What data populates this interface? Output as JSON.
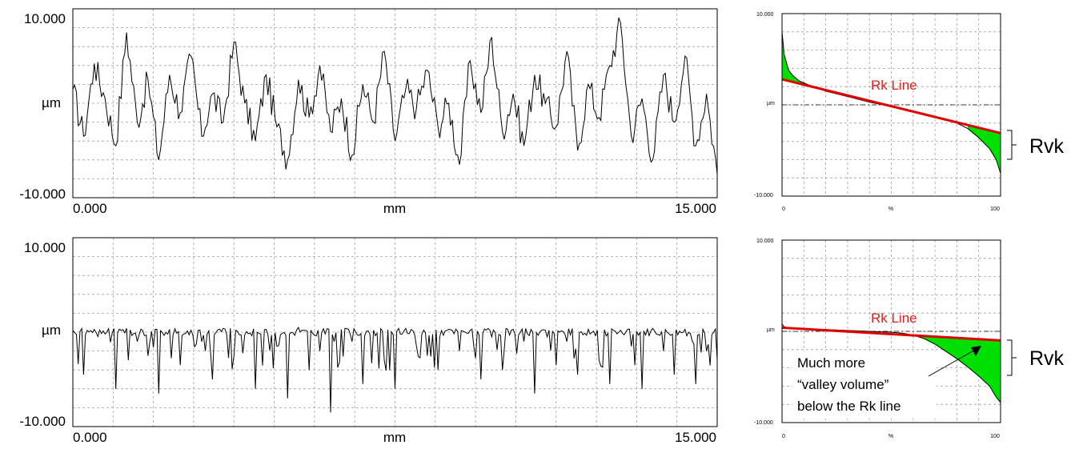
{
  "chart_data": [
    {
      "id": "profile_top",
      "type": "line",
      "description_label": "",
      "ylabel": "µm",
      "xlabel": "mm",
      "y_tick_labels": [
        "10.000",
        "-10.000"
      ],
      "x_tick_labels": [
        "0.000",
        "15.000"
      ],
      "xlim": [
        0,
        15
      ],
      "ylim": [
        -10,
        10
      ],
      "grid": true,
      "series": [
        {
          "x": [
            0,
            0.25,
            0.5,
            0.75,
            1,
            1.25,
            1.5,
            1.75,
            2,
            2.25,
            2.5,
            2.75,
            3,
            3.25,
            3.5,
            3.75,
            4,
            4.25,
            4.5,
            4.75,
            5,
            5.25,
            5.5,
            5.75,
            6,
            6.25,
            6.5,
            6.75,
            7,
            7.25,
            7.5,
            7.75,
            8,
            8.25,
            8.5,
            8.75,
            9,
            9.25,
            9.5,
            9.75,
            10,
            10.25,
            10.5,
            10.75,
            11,
            11.25,
            11.5,
            11.75,
            12,
            12.25,
            12.5,
            12.75,
            13,
            13.25,
            13.5,
            13.75,
            14,
            14.25,
            14.5,
            14.75,
            15
          ],
          "y": [
            1.5,
            -3.5,
            4.2,
            0.5,
            -4.5,
            7.5,
            -2.0,
            2.5,
            -6.0,
            3.0,
            -1.0,
            5.0,
            -3.5,
            1.0,
            -2.0,
            6.5,
            0.0,
            -4.0,
            3.0,
            -2.5,
            -6.0,
            2.5,
            -1.5,
            4.0,
            -3.0,
            0.5,
            -5.5,
            2.0,
            -2.0,
            5.5,
            -4.0,
            1.5,
            -0.5,
            3.5,
            -2.5,
            0.0,
            -6.5,
            4.5,
            -1.0,
            7.0,
            -3.0,
            1.0,
            -4.5,
            3.0,
            0.0,
            -2.5,
            5.5,
            -5.0,
            2.0,
            -1.5,
            4.0,
            8.5,
            -3.5,
            0.5,
            -6.0,
            3.0,
            -2.0,
            5.0,
            -4.5,
            1.0,
            -7.5
          ]
        }
      ]
    },
    {
      "id": "abbott_top",
      "type": "line",
      "ylabel": "µm",
      "xlabel": "%",
      "y_tick_labels": [
        "10.000",
        "-10.000"
      ],
      "x_tick_labels": [
        "0",
        "%",
        "100"
      ],
      "xlim": [
        0,
        100
      ],
      "ylim": [
        -10,
        10
      ],
      "grid": true,
      "series": [
        {
          "name": "bearing_curve",
          "x": [
            0,
            1,
            3,
            5,
            8,
            12,
            20,
            30,
            40,
            50,
            60,
            70,
            80,
            85,
            90,
            95,
            98,
            100
          ],
          "y": [
            8.0,
            5.5,
            3.8,
            3.2,
            2.6,
            2.2,
            1.5,
            0.9,
            0.3,
            -0.2,
            -0.8,
            -1.4,
            -2.0,
            -2.6,
            -3.6,
            -4.8,
            -6.0,
            -7.5
          ]
        },
        {
          "name": "Rk Line",
          "x": [
            0,
            100
          ],
          "y": [
            2.8,
            -3.1
          ]
        }
      ],
      "annotations": [
        "Rk Line",
        "Rvk"
      ]
    },
    {
      "id": "profile_bottom",
      "type": "line",
      "ylabel": "µm",
      "xlabel": "mm",
      "y_tick_labels": [
        "10.000",
        "-10.000"
      ],
      "x_tick_labels": [
        "0.000",
        "15.000"
      ],
      "xlim": [
        0,
        15
      ],
      "ylim": [
        -10,
        10
      ],
      "grid": true,
      "series": [
        {
          "x": [
            0,
            0.25,
            0.5,
            0.75,
            1,
            1.25,
            1.5,
            1.75,
            2,
            2.25,
            2.5,
            2.75,
            3,
            3.25,
            3.5,
            3.75,
            4,
            4.25,
            4.5,
            4.75,
            5,
            5.25,
            5.5,
            5.75,
            6,
            6.25,
            6.5,
            6.75,
            7,
            7.25,
            7.5,
            7.75,
            8,
            8.25,
            8.5,
            8.75,
            9,
            9.25,
            9.5,
            9.75,
            10,
            10.25,
            10.5,
            10.75,
            11,
            11.25,
            11.5,
            11.75,
            12,
            12.25,
            12.5,
            12.75,
            13,
            13.25,
            13.5,
            13.75,
            14,
            14.25,
            14.5,
            14.75,
            15
          ],
          "y": [
            0.2,
            -4.5,
            0.3,
            -0.2,
            -6.0,
            0.4,
            -1.0,
            -2.5,
            -6.5,
            0.3,
            -3.5,
            0.2,
            -1.0,
            -5.0,
            0.4,
            -2.5,
            -0.3,
            -6.0,
            0.3,
            -1.5,
            -7.0,
            0.5,
            -4.0,
            -2.0,
            -8.5,
            0.3,
            -1.0,
            -5.5,
            0.2,
            -3.0,
            -6.0,
            0.4,
            -1.5,
            -2.5,
            -4.0,
            0.3,
            -2.0,
            0.2,
            -5.0,
            -0.5,
            -4.0,
            0.3,
            -1.0,
            -6.5,
            0.2,
            -3.5,
            -1.0,
            -4.5,
            0.3,
            -3.0,
            -5.5,
            0.2,
            -1.5,
            -6.0,
            0.4,
            -2.0,
            -4.5,
            0.3,
            -5.5,
            -2.0,
            -3.0
          ]
        }
      ]
    },
    {
      "id": "abbott_bottom",
      "type": "line",
      "ylabel": "µm",
      "xlabel": "%",
      "y_tick_labels": [
        "10.000",
        "-10.000"
      ],
      "x_tick_labels": [
        "0",
        "%",
        "100"
      ],
      "xlim": [
        0,
        100
      ],
      "ylim": [
        -10,
        10
      ],
      "grid": true,
      "series": [
        {
          "name": "bearing_curve",
          "x": [
            0,
            1,
            3,
            5,
            10,
            20,
            30,
            40,
            50,
            55,
            60,
            65,
            70,
            75,
            80,
            85,
            90,
            95,
            98,
            100
          ],
          "y": [
            0.8,
            0.5,
            0.4,
            0.35,
            0.3,
            0.2,
            0.1,
            0.0,
            -0.1,
            -0.2,
            -0.4,
            -0.8,
            -1.4,
            -2.2,
            -3.0,
            -3.9,
            -4.9,
            -6.0,
            -7.2,
            -7.8
          ]
        },
        {
          "name": "Rk Line",
          "x": [
            0,
            100
          ],
          "y": [
            0.4,
            -1.0
          ]
        }
      ],
      "annotations": [
        "Rk Line",
        "Rvk",
        "Much more",
        "“valley volume”",
        "below the Rk line"
      ]
    }
  ],
  "labels": {
    "top_profile": {
      "y_top": "10.000",
      "y_mid": "µm",
      "y_bot": "-10.000",
      "x_left": "0.000",
      "x_mid": "mm",
      "x_right": "15.000"
    },
    "bottom_profile": {
      "y_top": "10.000",
      "y_mid": "µm",
      "y_bot": "-10.000",
      "x_left": "0.000",
      "x_mid": "mm",
      "x_right": "15.000"
    },
    "top_abbott": {
      "y_top": "10.000",
      "y_mid": "µm",
      "y_bot": "-10.000",
      "x_left": "0",
      "x_mid": "%",
      "x_right": "100",
      "rk_line": "Rk Line",
      "rvk": "Rvk"
    },
    "bottom_abbott": {
      "y_top": "10.000",
      "y_mid": "µm",
      "y_bot": "-10.000",
      "x_left": "0",
      "x_mid": "%",
      "x_right": "100",
      "rk_line": "Rk Line",
      "rvk": "Rvk",
      "note_1": "Much more",
      "note_2": "“valley volume”",
      "note_3": "below the Rk line"
    }
  },
  "colors": {
    "grid": "#a0a0a0",
    "profile_line": "#000000",
    "rk_line": "#e00000",
    "rk_label": "#e02020",
    "fill": "#00e000",
    "frame": "#000000"
  }
}
